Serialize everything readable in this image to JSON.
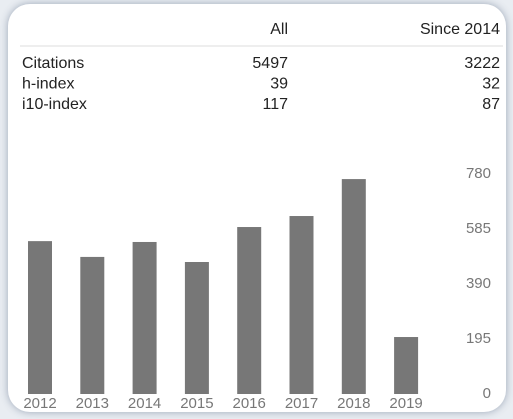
{
  "table": {
    "columns": [
      "All",
      "Since 2014"
    ],
    "rows": [
      {
        "label": "Citations",
        "values": [
          5497,
          3222
        ]
      },
      {
        "label": "h-index",
        "values": [
          39,
          32
        ]
      },
      {
        "label": "i10-index",
        "values": [
          117,
          87
        ]
      }
    ]
  },
  "chart_data": {
    "type": "bar",
    "categories": [
      "2012",
      "2013",
      "2014",
      "2015",
      "2016",
      "2017",
      "2018",
      "2019"
    ],
    "values": [
      542,
      486,
      539,
      468,
      592,
      631,
      762,
      202
    ],
    "color": "#777777",
    "ylim": [
      0,
      780
    ],
    "yticks": [
      0,
      195,
      390,
      585,
      780
    ],
    "grid": false
  }
}
